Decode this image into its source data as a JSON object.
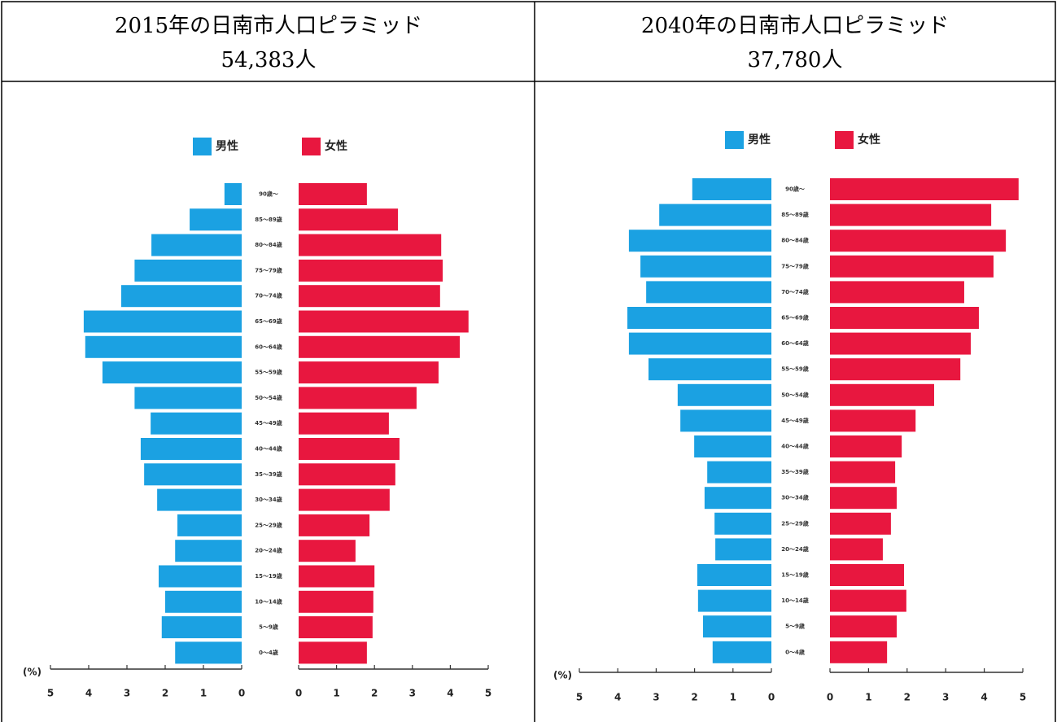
{
  "chart_data": [
    {
      "type": "pyramid",
      "title": "2015年の日南市人口ピラミッド",
      "subtitle": "54,383人",
      "categories": [
        "90歳～",
        "85～89歳",
        "80～84歳",
        "75～79歳",
        "70～74歳",
        "65～69歳",
        "60～64歳",
        "55～59歳",
        "50～54歳",
        "45～49歳",
        "40～44歳",
        "35～39歳",
        "30～34歳",
        "25～29歳",
        "20～24歳",
        "15～19歳",
        "10～14歳",
        "5～9歳",
        "0～4歳"
      ],
      "series": [
        {
          "name": "男性",
          "color": "#1ba1e2",
          "values": [
            0.45,
            1.36,
            2.36,
            2.8,
            3.15,
            4.13,
            4.09,
            3.64,
            2.8,
            2.38,
            2.64,
            2.55,
            2.21,
            1.68,
            1.74,
            2.17,
            2.0,
            2.09,
            1.74
          ]
        },
        {
          "name": "女性",
          "color": "#e8173f",
          "values": [
            1.8,
            2.62,
            3.76,
            3.8,
            3.73,
            4.48,
            4.25,
            3.69,
            3.11,
            2.38,
            2.66,
            2.55,
            2.4,
            1.87,
            1.5,
            2.0,
            1.97,
            1.95,
            1.8
          ]
        }
      ],
      "axis_label": "(%)",
      "xlim": [
        0,
        5
      ],
      "xticks": [
        0,
        1,
        2,
        3,
        4,
        5
      ]
    },
    {
      "type": "pyramid",
      "title": "2040年の日南市人口ピラミッド",
      "subtitle": "37,780人",
      "categories": [
        "90歳～",
        "85～89歳",
        "80～84歳",
        "75～79歳",
        "70～74歳",
        "65～69歳",
        "60～64歳",
        "55～59歳",
        "50～54歳",
        "45～49歳",
        "40～44歳",
        "35～39歳",
        "30～34歳",
        "25～29歳",
        "20～24歳",
        "15～19歳",
        "10～14歳",
        "5～9歳",
        "0～4歳"
      ],
      "series": [
        {
          "name": "男性",
          "color": "#1ba1e2",
          "values": [
            2.06,
            2.92,
            3.71,
            3.41,
            3.26,
            3.75,
            3.71,
            3.2,
            2.44,
            2.37,
            2.01,
            1.67,
            1.74,
            1.48,
            1.46,
            1.93,
            1.91,
            1.78,
            1.53
          ]
        },
        {
          "name": "女性",
          "color": "#e8173f",
          "values": [
            4.89,
            4.18,
            4.56,
            4.24,
            3.48,
            3.86,
            3.65,
            3.38,
            2.7,
            2.22,
            1.86,
            1.69,
            1.73,
            1.58,
            1.37,
            1.92,
            1.98,
            1.73,
            1.48
          ]
        }
      ],
      "axis_label": "(%)",
      "xlim": [
        0,
        5
      ],
      "xticks": [
        0,
        1,
        2,
        3,
        4,
        5
      ]
    }
  ]
}
